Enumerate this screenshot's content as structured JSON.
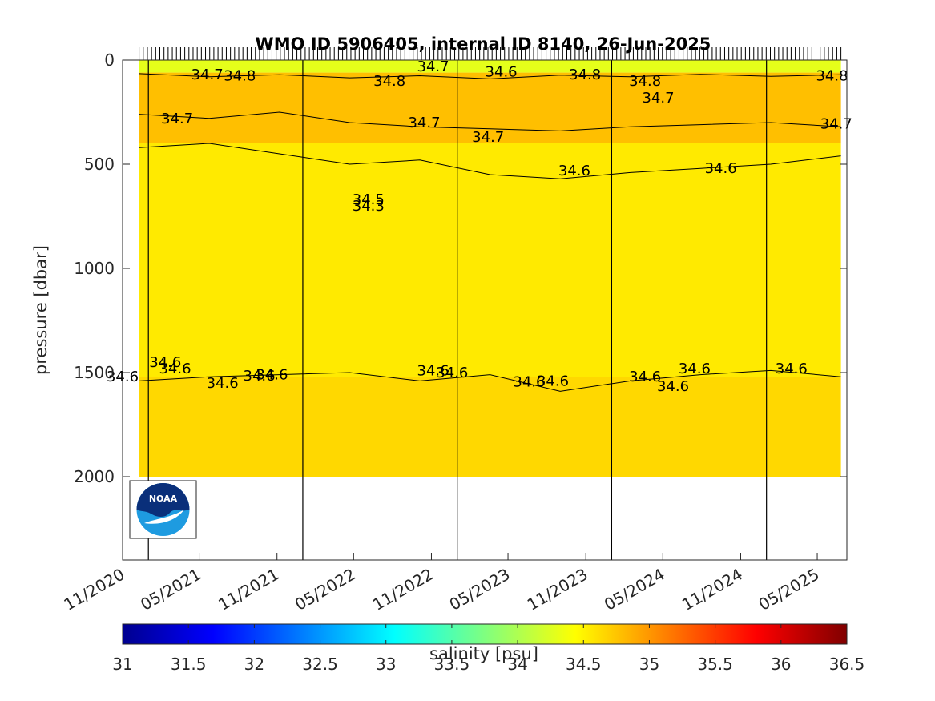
{
  "logo": {
    "text": "NOAA",
    "icon": "noaa-logo-icon"
  },
  "chart_data": {
    "type": "heatmap",
    "title": "WMO ID 5906405, internal ID 8140, 26-Jun-2025",
    "xlabel": "",
    "ylabel": "pressure [dbar]",
    "x_axis_type": "date",
    "xlim": [
      "2020-11-01",
      "2025-07-10"
    ],
    "ylim": [
      0,
      2400
    ],
    "y_reversed": true,
    "x_tick_labels": [
      "11/2020",
      "05/2021",
      "11/2021",
      "05/2022",
      "11/2022",
      "05/2023",
      "11/2023",
      "05/2024",
      "11/2024",
      "05/2025"
    ],
    "x_tick_dates": [
      "2020-11-01",
      "2021-05-01",
      "2021-11-01",
      "2022-05-01",
      "2022-11-01",
      "2023-05-01",
      "2023-11-01",
      "2024-05-01",
      "2024-11-01",
      "2025-05-01"
    ],
    "y_ticks": [
      0,
      500,
      1000,
      1500,
      2000
    ],
    "y_tick_labels": [
      "0",
      "500",
      "1000",
      "1500",
      "2000"
    ],
    "year_boundaries": [
      "2021-01-01",
      "2022-01-01",
      "2023-01-01",
      "2024-01-01",
      "2025-01-01"
    ],
    "colormap": "jet",
    "colorbar": {
      "label": "salinity [psu]",
      "min": 31,
      "max": 36.5,
      "ticks": [
        31,
        31.5,
        32,
        32.5,
        33,
        33.5,
        34,
        34.5,
        35,
        35.5,
        36,
        36.5
      ],
      "tick_labels": [
        "31",
        "31.5",
        "32",
        "32.5",
        "33",
        "33.5",
        "34",
        "34.5",
        "35",
        "35.5",
        "36",
        "36.5"
      ],
      "location": "bottom"
    },
    "profile_max_pressure_dbar": 2000,
    "fill_regions": [
      {
        "top_dbar": 0,
        "bottom_dbar": 60,
        "salinity_psu": 34.3
      },
      {
        "top_dbar": 60,
        "bottom_dbar": 400,
        "salinity_psu": 34.78
      },
      {
        "top_dbar": 400,
        "bottom_dbar": 1520,
        "salinity_psu": 34.55
      },
      {
        "top_dbar": 1520,
        "bottom_dbar": 2000,
        "salinity_psu": 34.65
      }
    ],
    "contours": [
      {
        "level": 34.8,
        "pressure_dbar": [
          65,
          80,
          70,
          85,
          75,
          90,
          72,
          80,
          68,
          78,
          70
        ]
      },
      {
        "level": 34.7,
        "pressure_dbar": [
          260,
          280,
          250,
          300,
          320,
          330,
          340,
          320,
          310,
          300,
          320
        ]
      },
      {
        "level": 34.6,
        "pressure_dbar": [
          420,
          400,
          450,
          500,
          480,
          550,
          570,
          540,
          520,
          500,
          460
        ]
      },
      {
        "level": 34.6,
        "pressure_dbar": [
          1540,
          1520,
          1510,
          1500,
          1540,
          1510,
          1590,
          1540,
          1510,
          1490,
          1520
        ]
      }
    ],
    "contour_labels": [
      {
        "text": "34.7",
        "date": "2021-05-20",
        "pressure_dbar": 70
      },
      {
        "text": "34.8",
        "date": "2021-08-05",
        "pressure_dbar": 75
      },
      {
        "text": "34.8",
        "date": "2022-07-25",
        "pressure_dbar": 100
      },
      {
        "text": "34.7",
        "date": "2022-11-05",
        "pressure_dbar": 30
      },
      {
        "text": "34.6",
        "date": "2023-04-15",
        "pressure_dbar": 55
      },
      {
        "text": "34.8",
        "date": "2023-10-30",
        "pressure_dbar": 70
      },
      {
        "text": "34.8",
        "date": "2024-03-20",
        "pressure_dbar": 100
      },
      {
        "text": "34.7",
        "date": "2024-04-20",
        "pressure_dbar": 180
      },
      {
        "text": "34.8",
        "date": "2025-06-05",
        "pressure_dbar": 75
      },
      {
        "text": "34.7",
        "date": "2021-03-10",
        "pressure_dbar": 280
      },
      {
        "text": "34.7",
        "date": "2022-10-15",
        "pressure_dbar": 300
      },
      {
        "text": "34.7",
        "date": "2023-03-15",
        "pressure_dbar": 370
      },
      {
        "text": "34.7",
        "date": "2025-06-15",
        "pressure_dbar": 305
      },
      {
        "text": "34.6",
        "date": "2023-10-05",
        "pressure_dbar": 530
      },
      {
        "text": "34.6",
        "date": "2024-09-15",
        "pressure_dbar": 520
      },
      {
        "text": "34.5",
        "date": "2022-06-05",
        "pressure_dbar": 670
      },
      {
        "text": "34.3",
        "date": "2022-06-05",
        "pressure_dbar": 700
      },
      {
        "text": "34.6",
        "date": "2020-11-01",
        "pressure_dbar": 1520
      },
      {
        "text": "34.6",
        "date": "2021-02-10",
        "pressure_dbar": 1450
      },
      {
        "text": "34.6",
        "date": "2021-03-05",
        "pressure_dbar": 1480
      },
      {
        "text": "34.6",
        "date": "2021-06-25",
        "pressure_dbar": 1550
      },
      {
        "text": "34.6",
        "date": "2021-09-20",
        "pressure_dbar": 1515
      },
      {
        "text": "34.6",
        "date": "2021-10-20",
        "pressure_dbar": 1510
      },
      {
        "text": "34.6",
        "date": "2022-11-05",
        "pressure_dbar": 1490
      },
      {
        "text": "34.6",
        "date": "2022-12-20",
        "pressure_dbar": 1500
      },
      {
        "text": "34.6",
        "date": "2023-06-20",
        "pressure_dbar": 1545
      },
      {
        "text": "34.6",
        "date": "2023-08-15",
        "pressure_dbar": 1540
      },
      {
        "text": "34.6",
        "date": "2024-03-20",
        "pressure_dbar": 1520
      },
      {
        "text": "34.6",
        "date": "2024-05-25",
        "pressure_dbar": 1565
      },
      {
        "text": "34.6",
        "date": "2024-07-15",
        "pressure_dbar": 1480
      },
      {
        "text": "34.6",
        "date": "2025-03-01",
        "pressure_dbar": 1480
      }
    ]
  }
}
